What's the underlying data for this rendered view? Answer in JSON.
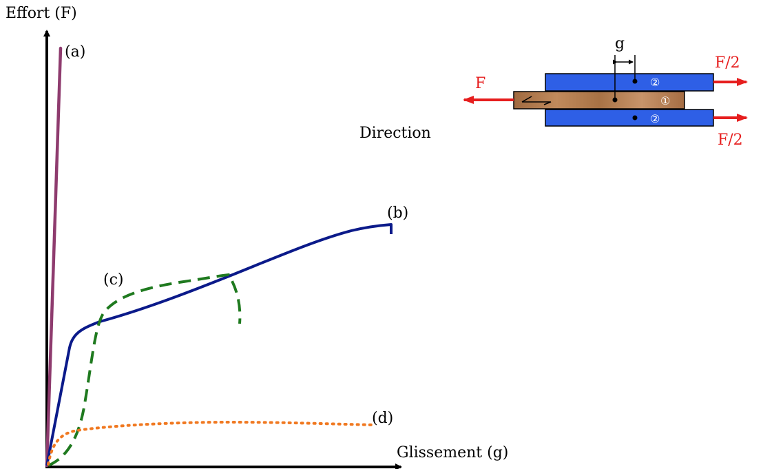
{
  "axes": {
    "y_label": "Effort (F)",
    "x_label": "Glissement (g)"
  },
  "curves": [
    {
      "label": "(a)",
      "color": "#8e3b6e",
      "style": "solid"
    },
    {
      "label": "(b)",
      "color": "#0b1a8a",
      "style": "solid"
    },
    {
      "label": "(c)",
      "color": "#1f7a1f",
      "style": "dashed"
    },
    {
      "label": "(d)",
      "color": "#f07820",
      "style": "dotted"
    }
  ],
  "inset": {
    "direction_label": "Direction",
    "gap_label": "g",
    "force_left": "F",
    "force_top_right": "F/2",
    "force_bottom_right": "F/2",
    "member_center": "①",
    "member_side_top": "②",
    "member_side_bottom": "②",
    "colors": {
      "side_members": "#2e5fe6",
      "center_member": "#b07a4e",
      "force_arrows": "#e61e1e"
    }
  }
}
